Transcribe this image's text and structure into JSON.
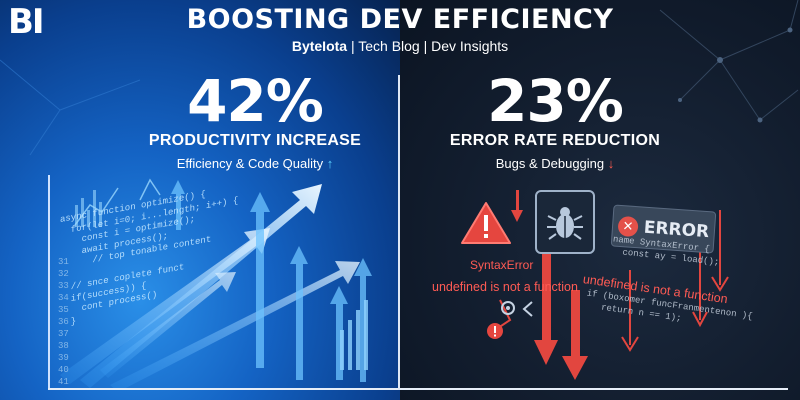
{
  "header": {
    "logo_text": "BI",
    "title": "BOOSTING DEV EFFICIENCY",
    "subtitle_brand": "ByteIota",
    "subtitle_rest": " | Tech Blog | Dev Insights"
  },
  "left_stat": {
    "value": "42%",
    "label": "PRODUCTIVITY INCREASE",
    "sub": "Efficiency & Code Quality",
    "trend_icon": "↑"
  },
  "right_stat": {
    "value": "23%",
    "label": "ERROR RATE REDUCTION",
    "sub": "Bugs & Debugging",
    "trend_icon": "↓"
  },
  "left_code": {
    "lines": "async function optimize() {\n  for(let i=0; i...length; i++) {\n    const i = optimize();\n    await process();\n      // top tonable content\n\n  // snce coplete funct\n  if(success)) {\n    cont process()\n  }"
  },
  "left_line_numbers": "31\n32\n33\n34\n35\n36\n37\n38\n39\n40\n41",
  "right_code": {
    "block1": "name SyntaxError {\n  const ay = load();",
    "block2": "if (boxomer funcFranmentenon ){\n   return n == 1);"
  },
  "errors": {
    "syntax": "SyntaxError",
    "undefined_left": "undefined is not a function",
    "undefined_right": "undefined is not a function",
    "badge": "ERROR"
  },
  "colors": {
    "accent_blue": "#2a8fe8",
    "error_red": "#ff5b54",
    "dark_bg": "#121d2e"
  },
  "icons": [
    "warning-triangle-icon",
    "bug-icon",
    "error-x-icon",
    "up-arrow-icon",
    "down-arrow-icon"
  ]
}
